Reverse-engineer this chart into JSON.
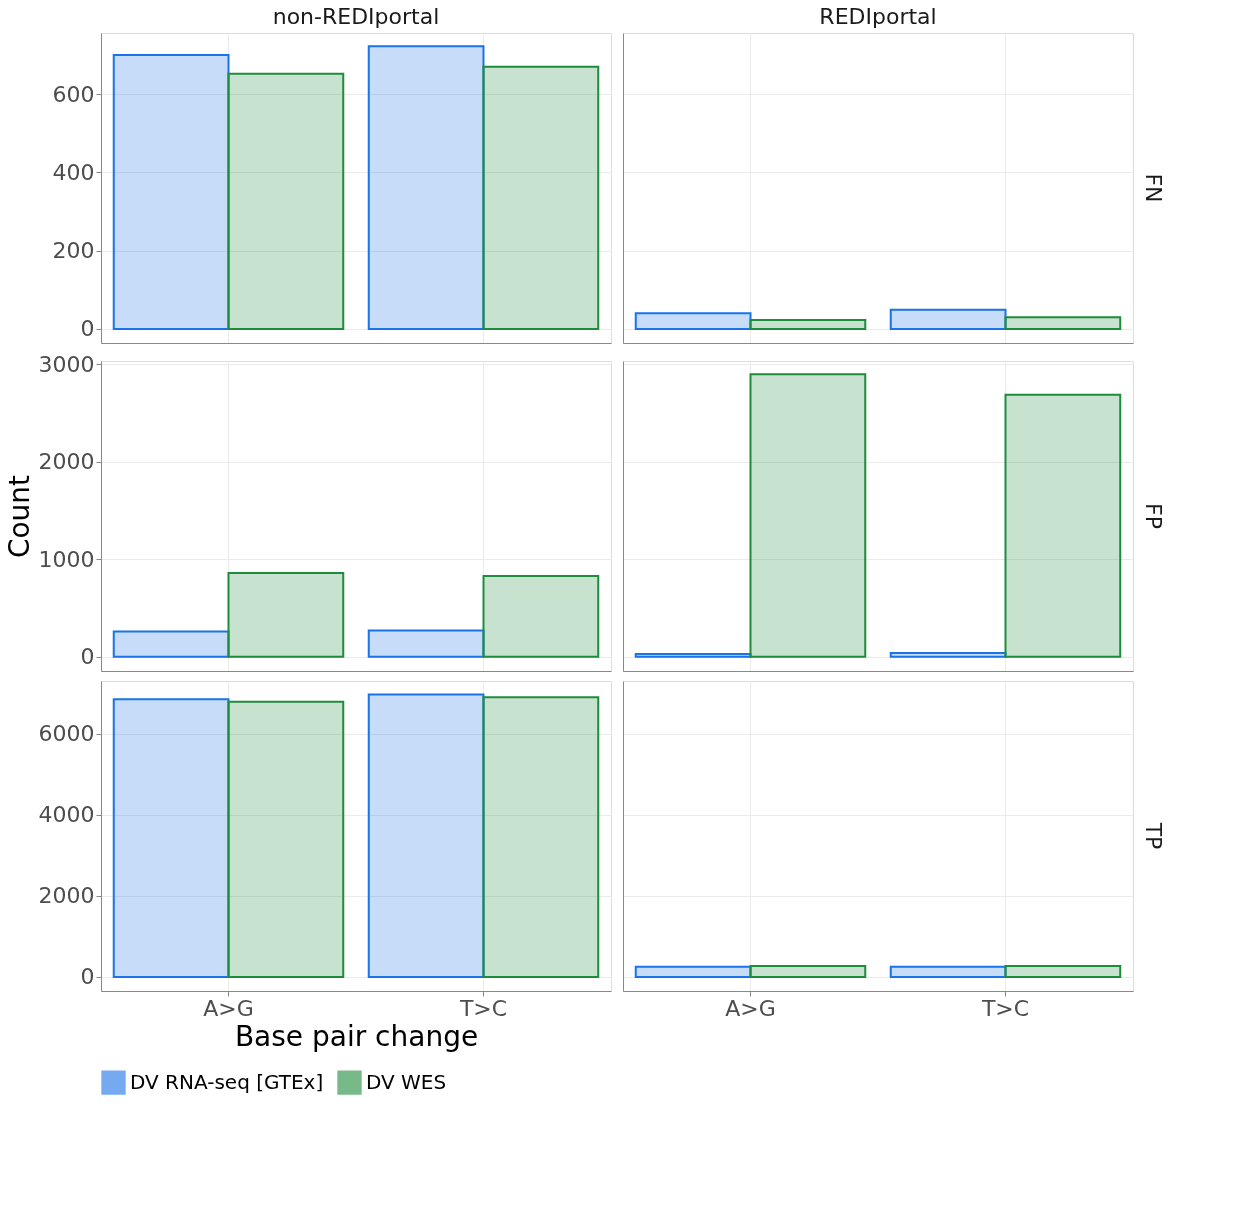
{
  "chart_data": [
    {
      "type": "bar",
      "title": "non-REDIportal",
      "categories": [
        "A>G",
        "T>C"
      ],
      "series": [
        {
          "name": "DV RNA-seq [GTEx]",
          "color": "#1a73e8",
          "values": [
            700,
            722
          ]
        },
        {
          "name": "DV WES",
          "color": "#1e8c3a",
          "values": [
            652,
            670
          ]
        }
      ],
      "ylim": [
        -36,
        756
      ],
      "yticks": [
        0,
        200,
        400,
        600
      ],
      "grid": true,
      "legend": "bottom",
      "tick_labels": "y"
    },
    {
      "type": "bar",
      "title": "REDIportal",
      "annotations": [
        "FN"
      ],
      "categories": [
        "A>G",
        "T>C"
      ],
      "series": [
        {
          "name": "DV RNA-seq [GTEx]",
          "color": "#1a73e8",
          "values": [
            40,
            49
          ]
        },
        {
          "name": "DV WES",
          "color": "#1e8c3a",
          "values": [
            23,
            30
          ]
        }
      ],
      "ylim": [
        -36,
        756
      ],
      "yticks": [
        0,
        200,
        400,
        600
      ],
      "grid": true,
      "legend": "bottom",
      "tick_labels": false
    },
    {
      "type": "bar",
      "ylabel": "Count",
      "categories": [
        "A>G",
        "T>C"
      ],
      "series": [
        {
          "name": "DV RNA-seq [GTEx]",
          "color": "#1a73e8",
          "values": [
            260,
            270
          ]
        },
        {
          "name": "DV WES",
          "color": "#1e8c3a",
          "values": [
            860,
            830
          ]
        }
      ],
      "ylim": [
        -145,
        3035
      ],
      "yticks": [
        0,
        1000,
        2000,
        3000
      ],
      "grid": true,
      "legend": "bottom",
      "tick_labels": "y"
    },
    {
      "type": "bar",
      "annotations": [
        "FP"
      ],
      "categories": [
        "A>G",
        "T>C"
      ],
      "series": [
        {
          "name": "DV RNA-seq [GTEx]",
          "color": "#1a73e8",
          "values": [
            30,
            40
          ]
        },
        {
          "name": "DV WES",
          "color": "#1e8c3a",
          "values": [
            2900,
            2690
          ]
        }
      ],
      "ylim": [
        -145,
        3035
      ],
      "yticks": [
        0,
        1000,
        2000,
        3000
      ],
      "grid": true,
      "legend": "bottom",
      "tick_labels": false
    },
    {
      "type": "bar",
      "xlabel": "Base pair change",
      "categories": [
        "A>G",
        "T>C"
      ],
      "series": [
        {
          "name": "DV RNA-seq [GTEx]",
          "color": "#1a73e8",
          "values": [
            6850,
            6970
          ]
        },
        {
          "name": "DV WES",
          "color": "#1e8c3a",
          "values": [
            6790,
            6900
          ]
        }
      ],
      "ylim": [
        -348,
        7300
      ],
      "yticks": [
        0,
        2000,
        4000,
        6000
      ],
      "grid": true,
      "legend": "bottom"
    },
    {
      "type": "bar",
      "annotations": [
        "TP"
      ],
      "categories": [
        "A>G",
        "T>C"
      ],
      "series": [
        {
          "name": "DV RNA-seq [GTEx]",
          "color": "#1a73e8",
          "values": [
            250,
            250
          ]
        },
        {
          "name": "DV WES",
          "color": "#1e8c3a",
          "values": [
            270,
            270
          ]
        }
      ],
      "ylim": [
        -348,
        7300
      ],
      "yticks": [
        0,
        2000,
        4000,
        6000
      ],
      "grid": true,
      "legend": "bottom",
      "tick_labels": "x"
    }
  ]
}
